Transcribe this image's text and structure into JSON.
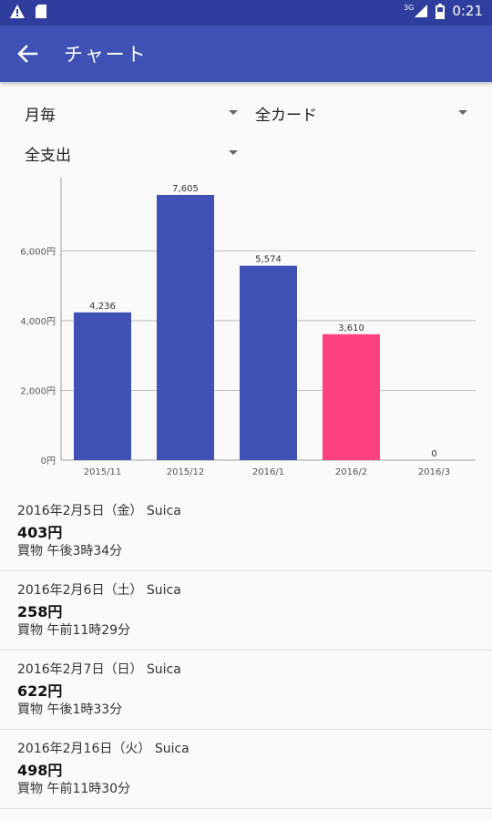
{
  "status": {
    "time": "0:21",
    "network": "3G"
  },
  "appbar": {
    "title": "チャート"
  },
  "filters": {
    "period": "月毎",
    "card": "全カード",
    "category": "全支出"
  },
  "chart_data": {
    "type": "bar",
    "categories": [
      "2015/11",
      "2015/12",
      "2016/1",
      "2016/2",
      "2016/3"
    ],
    "values": [
      4236,
      7605,
      5574,
      3610,
      0
    ],
    "value_labels": [
      "4,236",
      "7,605",
      "5,574",
      "3,610",
      "0"
    ],
    "y_ticks": [
      0,
      2000,
      4000,
      6000
    ],
    "y_tick_labels": [
      "0円",
      "2,000円",
      "4,000円",
      "6,000円"
    ],
    "ylim": [
      0,
      8100
    ],
    "grid": true,
    "colors": [
      "#3f51b5",
      "#3f51b5",
      "#3f51b5",
      "#ff4081",
      "#3f51b5"
    ]
  },
  "transactions": [
    {
      "date": "2016年2月5日（金）",
      "card": "Suica",
      "amount": "403円",
      "detail": "買物 午後3時34分"
    },
    {
      "date": "2016年2月6日（土）",
      "card": "Suica",
      "amount": "258円",
      "detail": "買物 午前11時29分"
    },
    {
      "date": "2016年2月7日（日）",
      "card": "Suica",
      "amount": "622円",
      "detail": "買物 午後1時33分"
    },
    {
      "date": "2016年2月16日（火）",
      "card": "Suica",
      "amount": "498円",
      "detail": "買物 午前11時30分"
    }
  ]
}
